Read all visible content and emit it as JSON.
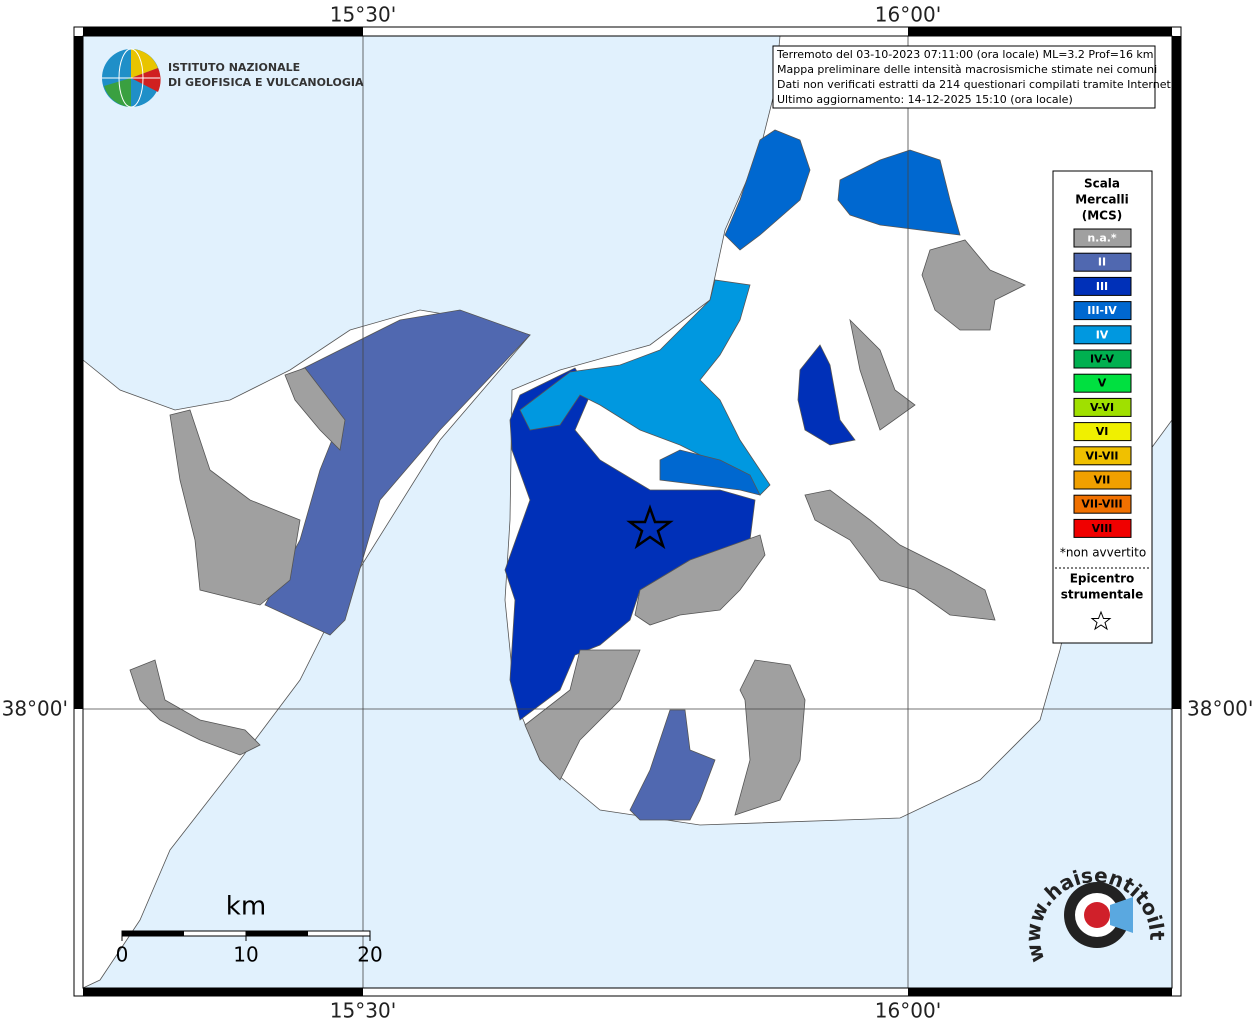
{
  "graticule": {
    "lon_labels": [
      "15°30'",
      "16°00'"
    ],
    "lat_labels": [
      "38°00'"
    ]
  },
  "logo": {
    "line1": "ISTITUTO NAZIONALE",
    "line2": "DI GEOFISICA E VULCANOLOGIA"
  },
  "info": {
    "lines": [
      "Terremoto del 03-10-2023 07:11:00 (ora locale) ML=3.2 Prof=16 km",
      "Mappa preliminare delle intensità macrosismiche stimate nei comuni",
      "Dati non verificati estratti da 214 questionari compilati tramite Internet.",
      "Ultimo aggiornamento: 14-12-2025 15:10 (ora locale)"
    ]
  },
  "legend": {
    "title": [
      "Scala",
      "Mercalli",
      "(MCS)"
    ],
    "items": [
      {
        "label": "n.a.*",
        "color": "#a0a0a0",
        "text_color": "#ffffff"
      },
      {
        "label": "II",
        "color": "#5068b0",
        "text_color": "#ffffff"
      },
      {
        "label": "III",
        "color": "#0030b8",
        "text_color": "#ffffff"
      },
      {
        "label": "III-IV",
        "color": "#0068d0",
        "text_color": "#ffffff"
      },
      {
        "label": "IV",
        "color": "#0098e0",
        "text_color": "#ffffff"
      },
      {
        "label": "IV-V",
        "color": "#00b050",
        "text_color": "#000000"
      },
      {
        "label": "V",
        "color": "#00e040",
        "text_color": "#000000"
      },
      {
        "label": "V-VI",
        "color": "#a0e000",
        "text_color": "#000000"
      },
      {
        "label": "VI",
        "color": "#f0f000",
        "text_color": "#000000"
      },
      {
        "label": "VI-VII",
        "color": "#f0c000",
        "text_color": "#000000"
      },
      {
        "label": "VII",
        "color": "#f0a000",
        "text_color": "#000000"
      },
      {
        "label": "VII-VIII",
        "color": "#f07000",
        "text_color": "#000000"
      },
      {
        "label": "VIII",
        "color": "#f00000",
        "text_color": "#000000"
      }
    ],
    "note": "*non avvertito",
    "epicenter": [
      "Epicentro",
      "strumentale"
    ]
  },
  "scale_bar": {
    "unit": "km",
    "ticks": [
      0,
      10,
      20
    ]
  },
  "watermark": "www.haisentitoilterremoto.it"
}
